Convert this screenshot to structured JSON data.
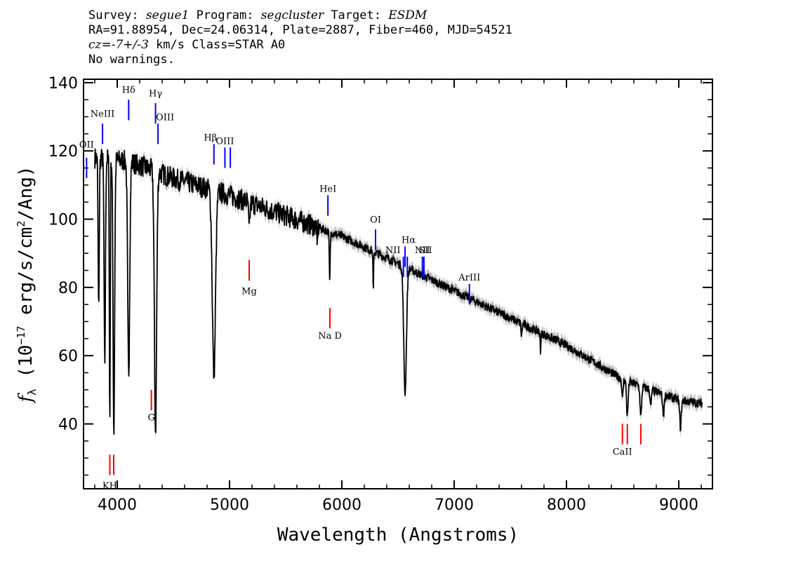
{
  "header": {
    "line1": [
      {
        "text": "Survey: ",
        "italic": false
      },
      {
        "text": "segue1",
        "italic": true
      },
      {
        "text": " Program: ",
        "italic": false
      },
      {
        "text": "segcluster",
        "italic": true
      },
      {
        "text": " Target: ",
        "italic": false
      },
      {
        "text": "ESDM",
        "italic": true
      }
    ],
    "line2": "RA=91.88954, Dec=24.06314, Plate=2887, Fiber=460, MJD=54521",
    "line3": [
      {
        "text": "cz=-7+/-3",
        "italic": true
      },
      {
        "text": " km/s Class=STAR A0",
        "italic": false
      }
    ],
    "line4": "No warnings."
  },
  "chart_data": {
    "type": "line",
    "xlabel": "Wavelength (Angstroms)",
    "ylabel": "f_λ (10^-17 erg/s/cm^2/Ang)",
    "ylabel_parts": {
      "f": "f",
      "sub": "λ",
      "a": " (10",
      "exp1": "−17",
      "b": " erg/s/cm",
      "exp2": "2",
      "c": "/Ang)"
    },
    "xlim": [
      3700,
      9300
    ],
    "ylim": [
      21,
      141
    ],
    "x_ticks": [
      4000,
      5000,
      6000,
      7000,
      8000,
      9000
    ],
    "x_tick_labels": [
      "4000",
      "5000",
      "6000",
      "7000",
      "8000",
      "9000"
    ],
    "y_ticks": [
      40,
      60,
      80,
      100,
      120,
      140
    ],
    "y_tick_labels": [
      "40",
      "60",
      "80",
      "100",
      "120",
      "140"
    ],
    "continuum": [
      [
        3800,
        118
      ],
      [
        4100,
        117
      ],
      [
        4500,
        112
      ],
      [
        5000,
        107
      ],
      [
        5500,
        101
      ],
      [
        6000,
        95
      ],
      [
        6500,
        87
      ],
      [
        7000,
        79
      ],
      [
        7500,
        71
      ],
      [
        8000,
        63
      ],
      [
        8500,
        53
      ],
      [
        9000,
        47
      ],
      [
        9200,
        46
      ]
    ],
    "absorption_lines": [
      {
        "x": 3835,
        "depth": 45,
        "width": 5
      },
      {
        "x": 3889,
        "depth": 60,
        "width": 6
      },
      {
        "x": 3934,
        "depth": 78,
        "width": 4
      },
      {
        "x": 3970,
        "depth": 80,
        "width": 7
      },
      {
        "x": 4102,
        "depth": 62,
        "width": 9
      },
      {
        "x": 4341,
        "depth": 76,
        "width": 10
      },
      {
        "x": 4861,
        "depth": 54,
        "width": 14
      },
      {
        "x": 5175,
        "depth": 8,
        "width": 6
      },
      {
        "x": 5780,
        "depth": 6,
        "width": 3
      },
      {
        "x": 5892,
        "depth": 15,
        "width": 4
      },
      {
        "x": 6280,
        "depth": 12,
        "width": 3
      },
      {
        "x": 6563,
        "depth": 37,
        "width": 12
      },
      {
        "x": 7600,
        "depth": 4,
        "width": 4
      },
      {
        "x": 7770,
        "depth": 6,
        "width": 3
      },
      {
        "x": 8498,
        "depth": 6,
        "width": 5
      },
      {
        "x": 8542,
        "depth": 10,
        "width": 7
      },
      {
        "x": 8662,
        "depth": 9,
        "width": 7
      },
      {
        "x": 8750,
        "depth": 5,
        "width": 6
      },
      {
        "x": 8863,
        "depth": 6,
        "width": 7
      },
      {
        "x": 9015,
        "depth": 8,
        "width": 7
      }
    ],
    "emission_markers": [
      {
        "label": "OII",
        "x": 3727,
        "y1": 112,
        "y2": 118,
        "label_y": 121,
        "dx": 0
      },
      {
        "label": "NeIII",
        "x": 3869,
        "y1": 122,
        "y2": 128,
        "label_y": 130,
        "dx": 0
      },
      {
        "label": "Hδ",
        "x": 4102,
        "y1": 129,
        "y2": 135,
        "label_y": 137,
        "dx": 0
      },
      {
        "label": "Hγ",
        "x": 4341,
        "y1": 128,
        "y2": 134,
        "label_y": 136,
        "dx": 0
      },
      {
        "label": "OIII",
        "x": 4363,
        "y1": 122,
        "y2": 128,
        "label_y": 129,
        "dx": 10
      },
      {
        "label": "Hβ",
        "x": 4861,
        "y1": 116,
        "y2": 122,
        "label_y": 123,
        "dx": -5
      },
      {
        "label": "OIII",
        "x": 4959,
        "y1": 115,
        "y2": 121,
        "label_y": 122,
        "dx": 0
      },
      {
        "label": "",
        "x": 5007,
        "y1": 115,
        "y2": 121,
        "label_y": 0,
        "dx": 0
      },
      {
        "label": "HeI",
        "x": 5876,
        "y1": 101,
        "y2": 107,
        "label_y": 108,
        "dx": 0
      },
      {
        "label": "OI",
        "x": 6300,
        "y1": 91,
        "y2": 97,
        "label_y": 99,
        "dx": 0
      },
      {
        "label": "NII",
        "x": 6548,
        "y1": 83,
        "y2": 89,
        "label_y": 90,
        "dx": -15
      },
      {
        "label": "Hα",
        "x": 6563,
        "y1": 86,
        "y2": 92,
        "label_y": 93,
        "dx": 5
      },
      {
        "label": "",
        "x": 6583,
        "y1": 83,
        "y2": 89,
        "label_y": 0,
        "dx": 0
      },
      {
        "label": "NII",
        "x": 6717,
        "y1": 83,
        "y2": 89,
        "label_y": 90,
        "dx": 0
      },
      {
        "label": "SII",
        "x": 6731,
        "y1": 83,
        "y2": 89,
        "label_y": 90,
        "dx": 2
      },
      {
        "label": "ArIII",
        "x": 7136,
        "y1": 75,
        "y2": 81,
        "label_y": 82,
        "dx": 0
      }
    ],
    "absorption_markers": [
      {
        "label": "KH",
        "x": 3934,
        "y1": 25,
        "y2": 31,
        "label_y": 21,
        "dx": 0
      },
      {
        "label": "",
        "x": 3969,
        "y1": 25,
        "y2": 31,
        "label_y": 0,
        "dx": 0
      },
      {
        "label": "G",
        "x": 4304,
        "y1": 44,
        "y2": 50,
        "label_y": 41,
        "dx": 0
      },
      {
        "label": "Mg",
        "x": 5175,
        "y1": 82,
        "y2": 88,
        "label_y": 78,
        "dx": 0
      },
      {
        "label": "Na D",
        "x": 5894,
        "y1": 68,
        "y2": 74,
        "label_y": 65,
        "dx": 0
      },
      {
        "label": "CaII",
        "x": 8498,
        "y1": 34,
        "y2": 40,
        "label_y": 31,
        "dx": 0
      },
      {
        "label": "",
        "x": 8542,
        "y1": 34,
        "y2": 40,
        "label_y": 0,
        "dx": 0
      },
      {
        "label": "",
        "x": 8662,
        "y1": 34,
        "y2": 40,
        "label_y": 0,
        "dx": 0
      }
    ],
    "colors": {
      "spectrum": "#000000",
      "error_band": "#b3b3b3",
      "emission_marker": "#0000ff",
      "absorption_marker": "#ff0000"
    }
  }
}
